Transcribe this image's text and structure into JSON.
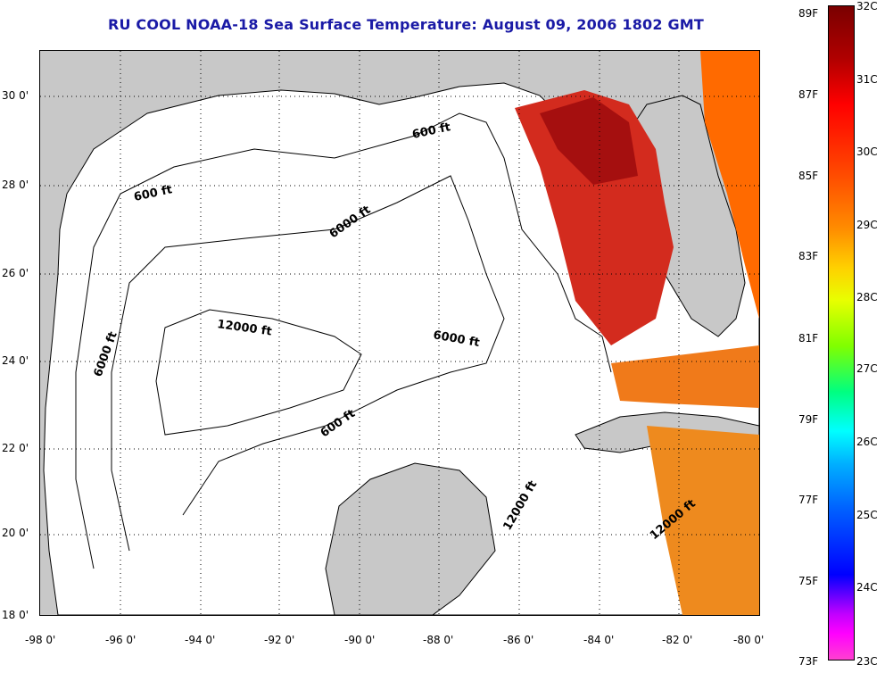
{
  "title": "RU COOL  NOAA-18  Sea Surface Temperature:  August 09, 2006 1802 GMT",
  "lat_labels": [
    "30 0'",
    "28 0'",
    "26 0'",
    "24 0'",
    "22 0'",
    "20 0'",
    "18 0'"
  ],
  "lon_labels": [
    "-98 0'",
    "-96 0'",
    "-94 0'",
    "-92 0'",
    "-90 0'",
    "-88 0'",
    "-86 0'",
    "-84 0'",
    "-82 0'",
    "-80 0'"
  ],
  "contour_labels": [
    "600 ft",
    "600 ft",
    "6000 ft",
    "12000 ft",
    "6000 ft",
    "6000 ft",
    "600 ft",
    "12000 ft",
    "12000 ft"
  ],
  "colorbar": {
    "f_labels": [
      "89F",
      "87F",
      "85F",
      "83F",
      "81F",
      "79F",
      "77F",
      "75F",
      "73F"
    ],
    "c_labels": [
      "32C",
      "31C",
      "30C",
      "29C",
      "28C",
      "27C",
      "26C",
      "25C",
      "24C",
      "23C"
    ],
    "colors": [
      "#7a0000",
      "#ff0000",
      "#ff8c00",
      "#ffd000",
      "#80ff00",
      "#00ffff",
      "#0000ff",
      "#ff00ff"
    ]
  },
  "colors": {
    "land": "#c8c8c8",
    "ocean_no_data": "#ffffff",
    "title": "#1a1aa6"
  }
}
